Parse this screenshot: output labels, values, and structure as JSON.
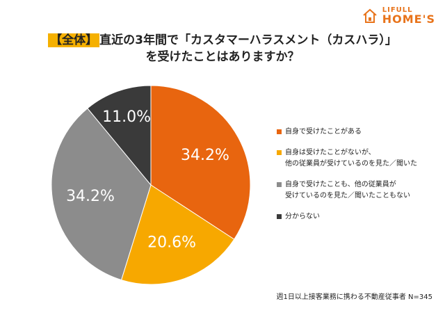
{
  "header": {
    "logo_top": "LIFULL",
    "logo_bottom": "HOME'S",
    "logo_icon": "house-icon",
    "brand_color": "#e8731a"
  },
  "title": {
    "tag": "【全体】",
    "line1": "直近の3年間で「カスタマーハラスメント（カスハラ）」",
    "line2": "を受けたことはありますか？"
  },
  "chart_data": {
    "type": "pie",
    "title": "【全体】直近の3年間で「カスタマーハラスメント（カスハラ）」を受けたことはありますか？",
    "start": "12 o'clock, clockwise",
    "slices": [
      {
        "label": "自身で受けたことがある",
        "value": 34.2,
        "display": "34.2%",
        "color": "#e8650f",
        "text_color": "#ffffff"
      },
      {
        "label": "自身は受けたことがないが、\n他の従業員が受けているのを見た／聞いた",
        "value": 20.6,
        "display": "20.6%",
        "color": "#f7a800",
        "text_color": "#ffffff"
      },
      {
        "label": "自身で受けたことも、他の従業員が\n受けているのを見た／聞いたこともない",
        "value": 34.2,
        "display": "34.2%",
        "color": "#8c8c8c",
        "text_color": "#ffffff"
      },
      {
        "label": "分からない",
        "value": 11.0,
        "display": "11.0%",
        "color": "#3a3a3a",
        "text_color": "#ffffff"
      }
    ]
  },
  "footnote": "週1日以上接客業務に携わる不動産従事者 N=345"
}
